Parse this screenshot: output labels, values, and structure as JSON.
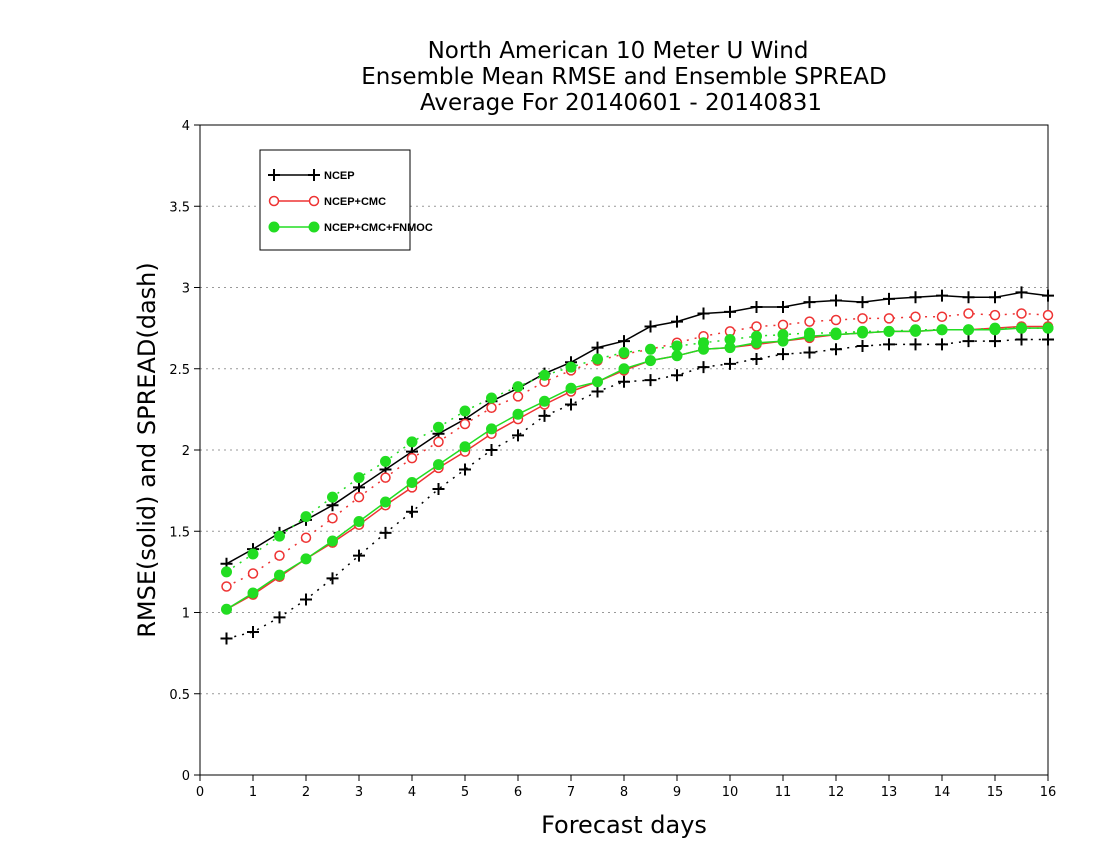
{
  "chart_data": {
    "type": "line",
    "title": [
      "North American 10 Meter U Wind",
      "Ensemble Mean RMSE and Ensemble SPREAD",
      "Average For 20140601 - 20140831"
    ],
    "xlabel": "Forecast days",
    "ylabel": "RMSE(solid) and SPREAD(dash)",
    "xlim": [
      0,
      16
    ],
    "ylim": [
      0,
      4
    ],
    "xticks": [
      "0",
      "1",
      "2",
      "3",
      "4",
      "5",
      "6",
      "7",
      "8",
      "9",
      "10",
      "11",
      "12",
      "13",
      "14",
      "15",
      "16"
    ],
    "yticks": [
      "0",
      "0.5",
      "1",
      "1.5",
      "2",
      "2.5",
      "3",
      "3.5",
      "4"
    ],
    "grid": true,
    "legend_position": "top-left",
    "x": [
      0.5,
      1,
      1.5,
      2,
      2.5,
      3,
      3.5,
      4,
      4.5,
      5,
      5.5,
      6,
      6.5,
      7,
      7.5,
      8,
      8.5,
      9,
      9.5,
      10,
      10.5,
      11,
      11.5,
      12,
      12.5,
      13,
      13.5,
      14,
      14.5,
      15,
      15.5,
      16
    ],
    "series": [
      {
        "name": "NCEP",
        "color": "#000000",
        "marker": "plus",
        "rmse": [
          1.3,
          1.39,
          1.49,
          1.57,
          1.66,
          1.77,
          1.88,
          1.99,
          2.1,
          2.19,
          2.3,
          2.38,
          2.47,
          2.54,
          2.63,
          2.67,
          2.76,
          2.79,
          2.84,
          2.85,
          2.88,
          2.88,
          2.91,
          2.92,
          2.91,
          2.93,
          2.94,
          2.95,
          2.94,
          2.94,
          2.97,
          2.95
        ],
        "spread": [
          0.84,
          0.88,
          0.97,
          1.08,
          1.21,
          1.35,
          1.49,
          1.62,
          1.76,
          1.88,
          2.0,
          2.09,
          2.21,
          2.28,
          2.36,
          2.42,
          2.43,
          2.46,
          2.51,
          2.53,
          2.56,
          2.59,
          2.6,
          2.62,
          2.64,
          2.65,
          2.65,
          2.65,
          2.67,
          2.67,
          2.68,
          2.68
        ]
      },
      {
        "name": "NCEP+CMC",
        "color": "#ee3333",
        "marker": "open-circle",
        "rmse": [
          1.02,
          1.11,
          1.22,
          1.33,
          1.43,
          1.54,
          1.66,
          1.77,
          1.89,
          1.99,
          2.1,
          2.19,
          2.28,
          2.36,
          2.42,
          2.49,
          2.55,
          2.58,
          2.62,
          2.63,
          2.65,
          2.67,
          2.69,
          2.71,
          2.72,
          2.73,
          2.73,
          2.74,
          2.74,
          2.75,
          2.76,
          2.76
        ],
        "spread": [
          1.16,
          1.24,
          1.35,
          1.46,
          1.58,
          1.71,
          1.83,
          1.95,
          2.05,
          2.16,
          2.26,
          2.33,
          2.42,
          2.49,
          2.55,
          2.59,
          2.62,
          2.66,
          2.7,
          2.73,
          2.76,
          2.77,
          2.79,
          2.8,
          2.81,
          2.81,
          2.82,
          2.82,
          2.84,
          2.83,
          2.84,
          2.83
        ]
      },
      {
        "name": "NCEP+CMC+FNMOC",
        "color": "#22dd22",
        "marker": "filled-circle",
        "rmse": [
          1.02,
          1.12,
          1.23,
          1.33,
          1.44,
          1.56,
          1.68,
          1.8,
          1.91,
          2.02,
          2.13,
          2.22,
          2.3,
          2.38,
          2.42,
          2.5,
          2.55,
          2.58,
          2.62,
          2.63,
          2.66,
          2.67,
          2.7,
          2.71,
          2.72,
          2.73,
          2.73,
          2.74,
          2.74,
          2.74,
          2.75,
          2.75
        ],
        "spread": [
          1.25,
          1.36,
          1.47,
          1.59,
          1.71,
          1.83,
          1.93,
          2.05,
          2.14,
          2.24,
          2.32,
          2.39,
          2.46,
          2.51,
          2.56,
          2.6,
          2.62,
          2.64,
          2.66,
          2.68,
          2.7,
          2.71,
          2.72,
          2.72,
          2.73,
          2.73,
          2.74,
          2.74,
          2.74,
          2.75,
          2.75,
          2.75
        ]
      }
    ]
  }
}
